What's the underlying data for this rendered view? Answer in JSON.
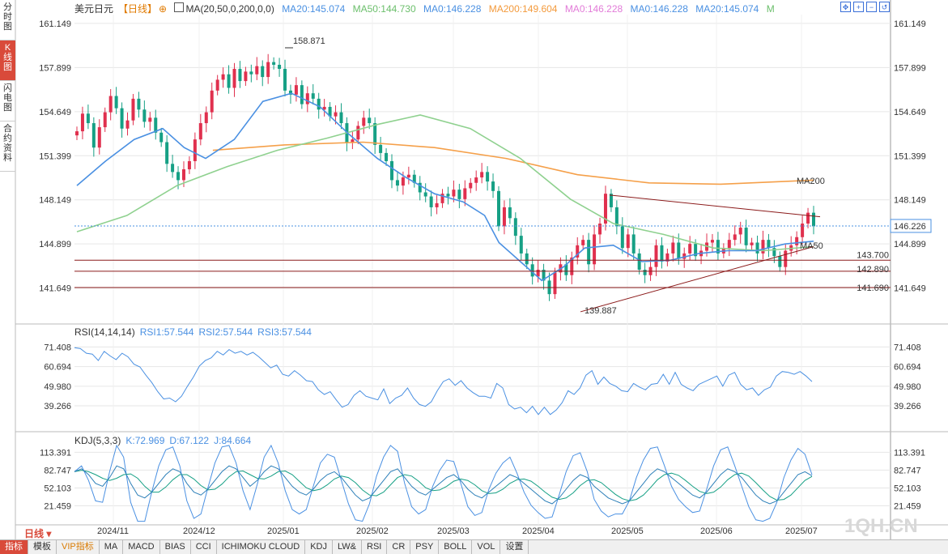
{
  "side_tabs": [
    {
      "label": "分\n时\n图",
      "active": false
    },
    {
      "label": "K\n线\n图",
      "active": true
    },
    {
      "label": "闪\n电\n图",
      "active": false
    },
    {
      "label": "合\n约\n资\n料",
      "active": false
    }
  ],
  "header": {
    "symbol": "美元日元",
    "period": "【日线】",
    "ma_label": "MA(20,50,0,200,0,0)",
    "ma20": "MA20:145.074",
    "ma50": "MA50:144.730",
    "ma0a": "MA0:146.228",
    "ma200": "MA200:149.604",
    "ma0b": "MA0:146.228",
    "ma0c": "MA0:146.228",
    "ma20b": "MA20:145.074",
    "m": "M"
  },
  "rsi_header": {
    "label": "RSI(14,14,14)",
    "r1": "RSI1:57.544",
    "r2": "RSI2:57.544",
    "r3": "RSI3:57.544"
  },
  "kdj_header": {
    "label": "KDJ(5,3,3)",
    "k": "K:72.969",
    "d": "D:67.122",
    "j": "J:84.664"
  },
  "watermark": "1QH.CN",
  "period_button": "日线",
  "bottom_tabs": [
    "指标",
    "模板",
    "VIP指标",
    "MA",
    "MACD",
    "BIAS",
    "CCI",
    "ICHIMOKU CLOUD",
    "KDJ",
    "LW&",
    "RSI",
    "CR",
    "PSY",
    "BOLL",
    "VOL",
    "设置"
  ],
  "colors": {
    "up": "#e0304e",
    "down": "#16a085",
    "ma20": "#4a90e2",
    "ma50": "#8fd18f",
    "ma200": "#f5a04a",
    "grid": "#e6e6e6"
  },
  "chart_data": {
    "type": "candlestick",
    "price_ticks": [
      "161.149",
      "157.899",
      "154.649",
      "151.399",
      "148.149",
      "144.899",
      "141.649"
    ],
    "price_ylim": [
      139.3,
      161.8
    ],
    "x_labels": [
      "2024/11",
      "2024/12",
      "2025/01",
      "2025/02",
      "2025/03",
      "2025/04",
      "2025/05",
      "2025/06",
      "2025/07"
    ],
    "close_path": [
      153.2,
      154.5,
      153.8,
      152.0,
      153.5,
      154.6,
      155.8,
      154.9,
      153.4,
      154.0,
      155.6,
      154.8,
      153.9,
      154.2,
      153.1,
      152.4,
      150.8,
      150.2,
      149.6,
      150.4,
      151.0,
      152.6,
      153.8,
      154.6,
      156.2,
      157.0,
      157.4,
      156.4,
      157.8,
      156.9,
      157.6,
      157.4,
      158.0,
      157.2,
      158.3,
      158.1,
      157.8,
      156.2,
      155.9,
      156.6,
      155.2,
      156.0,
      155.6,
      154.8,
      155.0,
      154.3,
      154.6,
      153.8,
      152.4,
      152.6,
      153.6,
      154.2,
      153.8,
      152.2,
      151.6,
      151.0,
      149.6,
      149.2,
      149.8,
      150.0,
      149.4,
      148.7,
      148.4,
      147.6,
      147.9,
      148.6,
      148.4,
      148.9,
      148.2,
      149.0,
      149.4,
      149.8,
      150.2,
      149.5,
      148.8,
      146.2,
      147.6,
      146.8,
      145.5,
      144.2,
      143.4,
      142.5,
      143.0,
      142.2,
      141.2,
      142.8,
      143.4,
      142.6,
      143.9,
      144.8,
      145.2,
      143.4,
      145.6,
      146.4,
      148.6,
      147.6,
      146.2,
      144.6,
      145.6,
      144.2,
      143.0,
      142.6,
      143.2,
      144.8,
      143.6,
      144.2,
      145.0,
      143.8,
      144.2,
      144.9,
      144.0,
      144.4,
      145.0,
      145.2,
      144.2,
      144.6,
      145.2,
      145.6,
      146.1,
      144.8,
      145.0,
      144.2,
      145.2,
      144.6,
      144.0,
      143.2,
      144.4,
      144.8,
      145.4,
      146.4,
      147.2,
      146.2
    ],
    "ma20": [
      {
        "x": 0,
        "y": 149.2
      },
      {
        "x": 8,
        "y": 151.0
      },
      {
        "x": 16,
        "y": 152.6
      },
      {
        "x": 24,
        "y": 153.4
      },
      {
        "x": 30,
        "y": 152.0
      },
      {
        "x": 36,
        "y": 151.2
      },
      {
        "x": 44,
        "y": 152.6
      },
      {
        "x": 52,
        "y": 155.4
      },
      {
        "x": 60,
        "y": 156.0
      },
      {
        "x": 68,
        "y": 155.0
      },
      {
        "x": 76,
        "y": 153.0
      },
      {
        "x": 84,
        "y": 151.2
      },
      {
        "x": 92,
        "y": 149.8
      },
      {
        "x": 100,
        "y": 148.6
      },
      {
        "x": 108,
        "y": 148.0
      },
      {
        "x": 114,
        "y": 147.0
      },
      {
        "x": 118,
        "y": 145.0
      },
      {
        "x": 124,
        "y": 143.6
      },
      {
        "x": 130,
        "y": 142.2
      },
      {
        "x": 136,
        "y": 143.2
      },
      {
        "x": 142,
        "y": 144.6
      },
      {
        "x": 150,
        "y": 144.8
      },
      {
        "x": 158,
        "y": 143.6
      },
      {
        "x": 166,
        "y": 143.7
      },
      {
        "x": 174,
        "y": 144.2
      },
      {
        "x": 182,
        "y": 144.4
      },
      {
        "x": 190,
        "y": 144.4
      },
      {
        "x": 198,
        "y": 144.9
      },
      {
        "x": 206,
        "y": 145.1
      }
    ],
    "ma50": [
      {
        "x": 0,
        "y": 145.8
      },
      {
        "x": 14,
        "y": 147.0
      },
      {
        "x": 28,
        "y": 149.2
      },
      {
        "x": 42,
        "y": 150.6
      },
      {
        "x": 56,
        "y": 151.8
      },
      {
        "x": 70,
        "y": 152.7
      },
      {
        "x": 84,
        "y": 153.7
      },
      {
        "x": 96,
        "y": 154.4
      },
      {
        "x": 110,
        "y": 153.4
      },
      {
        "x": 124,
        "y": 151.2
      },
      {
        "x": 138,
        "y": 148.2
      },
      {
        "x": 150,
        "y": 146.4
      },
      {
        "x": 164,
        "y": 145.6
      },
      {
        "x": 178,
        "y": 144.6
      },
      {
        "x": 192,
        "y": 144.4
      },
      {
        "x": 206,
        "y": 144.7
      }
    ],
    "ma200": [
      {
        "x": 38,
        "y": 151.8
      },
      {
        "x": 58,
        "y": 152.2
      },
      {
        "x": 80,
        "y": 152.4
      },
      {
        "x": 100,
        "y": 152.0
      },
      {
        "x": 120,
        "y": 151.2
      },
      {
        "x": 140,
        "y": 150.0
      },
      {
        "x": 160,
        "y": 149.4
      },
      {
        "x": 180,
        "y": 149.3
      },
      {
        "x": 206,
        "y": 149.6
      }
    ],
    "annotations": {
      "high": "158.871",
      "low": "139.887",
      "last": "146.226",
      "ma200_tag": "MA200",
      "ma50_tag": "MA50"
    },
    "hlines": [
      {
        "y": 143.7,
        "label": "143.700"
      },
      {
        "y": 142.89,
        "label": "142.890"
      },
      {
        "y": 141.69,
        "label": "141.690"
      }
    ],
    "current": 146.226,
    "rsi_ticks": [
      "71.408",
      "60.694",
      "49.980",
      "39.266"
    ],
    "rsi_ylim": [
      30.0,
      76.0
    ],
    "rsi": [
      71.0,
      70.5,
      68.0,
      67.5,
      64.0,
      69.0,
      66.5,
      64.5,
      68.0,
      66.0,
      62.0,
      60.5,
      56.0,
      52.0,
      47.0,
      43.0,
      43.5,
      41.5,
      44.5,
      50.0,
      55.0,
      61.0,
      64.0,
      65.5,
      69.0,
      67.0,
      70.0,
      68.0,
      69.0,
      67.0,
      68.5,
      66.0,
      63.0,
      60.0,
      61.5,
      56.5,
      55.5,
      58.5,
      56.0,
      53.0,
      52.5,
      48.0,
      45.5,
      47.0,
      42.5,
      38.5,
      40.0,
      45.0,
      47.5,
      44.5,
      43.5,
      42.5,
      48.5,
      40.5,
      43.5,
      45.0,
      49.0,
      43.5,
      40.0,
      39.0,
      41.5,
      47.5,
      52.5,
      54.0,
      50.5,
      53.0,
      49.0,
      46.5,
      44.5,
      44.5,
      43.5,
      51.5,
      49.0,
      40.0,
      37.5,
      38.5,
      35.5,
      39.0,
      34.5,
      38.5,
      34.5,
      37.0,
      41.0,
      47.5,
      45.5,
      49.0,
      56.0,
      58.5,
      51.0,
      55.0,
      51.5,
      50.0,
      47.5,
      47.0,
      51.5,
      49.5,
      48.0,
      51.0,
      51.5,
      56.5,
      51.0,
      57.5,
      51.0,
      49.0,
      47.5,
      51.0,
      52.5,
      54.0,
      55.5,
      50.0,
      56.0,
      57.5,
      51.0,
      48.0,
      49.0,
      45.0,
      48.0,
      49.5,
      55.5,
      58.0,
      57.5,
      56.5,
      58.0,
      55.5,
      52.5
    ],
    "kdj_ticks": [
      "113.391",
      "82.747",
      "52.103",
      "21.459"
    ],
    "kdj_ylim": [
      0,
      125
    ],
    "kdj_k": [
      80,
      85,
      75,
      60,
      55,
      70,
      90,
      85,
      60,
      40,
      35,
      45,
      60,
      75,
      85,
      80,
      60,
      45,
      40,
      50,
      65,
      80,
      90,
      85,
      70,
      55,
      65,
      80,
      90,
      85,
      70,
      55,
      45,
      40,
      50,
      65,
      75,
      80,
      70,
      55,
      40,
      30,
      35,
      50,
      65,
      80,
      85,
      70,
      55,
      45,
      40,
      50,
      60,
      70,
      75,
      65,
      50,
      40,
      35,
      45,
      55,
      65,
      75,
      70,
      60,
      50,
      40,
      30,
      25,
      35,
      50,
      65,
      75,
      70,
      55,
      45,
      35,
      30,
      25,
      30,
      45,
      60,
      75,
      85,
      80,
      70,
      60,
      50,
      40,
      35,
      45,
      60,
      75,
      85,
      80,
      70,
      55,
      40,
      30,
      25,
      30,
      45,
      60,
      75,
      80,
      73
    ]
  }
}
